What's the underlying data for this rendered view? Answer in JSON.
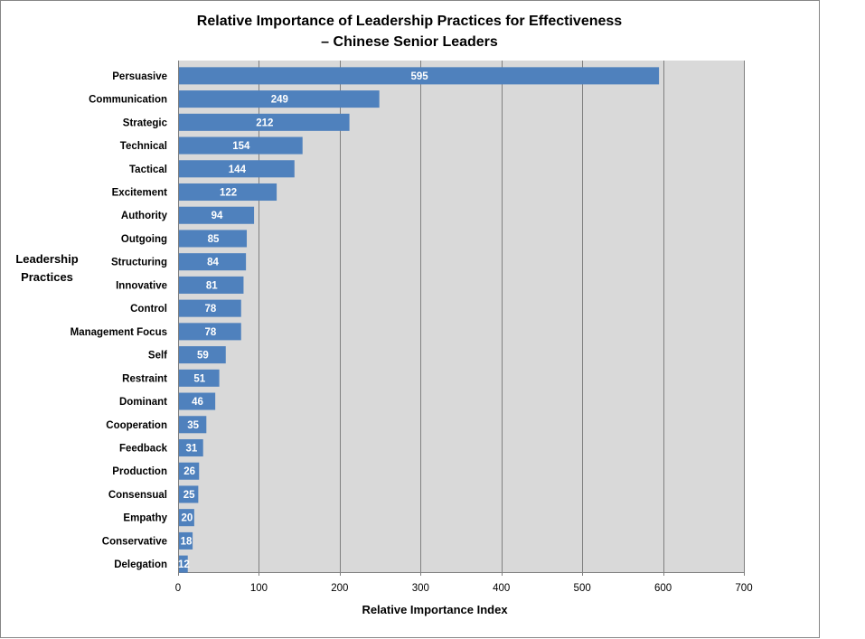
{
  "chart_data": {
    "type": "bar",
    "orientation": "horizontal",
    "title": [
      "Relative Importance of Leadership Practices for Effectiveness",
      "– Chinese Senior Leaders"
    ],
    "xlabel": "Relative Importance Index",
    "ylabel": [
      "Leadership",
      "Practices"
    ],
    "categories": [
      "Persuasive",
      "Communication",
      "Strategic",
      "Technical",
      "Tactical",
      "Excitement",
      "Authority",
      "Outgoing",
      "Structuring",
      "Innovative",
      "Control",
      "Management Focus",
      "Self",
      "Restraint",
      "Dominant",
      "Cooperation",
      "Feedback",
      "Production",
      "Consensual",
      "Empathy",
      "Conservative",
      "Delegation"
    ],
    "values": [
      595,
      249,
      212,
      154,
      144,
      122,
      94,
      85,
      84,
      81,
      78,
      78,
      59,
      51,
      46,
      35,
      31,
      26,
      25,
      20,
      18,
      12
    ],
    "xlim": [
      0,
      700
    ],
    "xticks": [
      0,
      100,
      200,
      300,
      400,
      500,
      600,
      700
    ],
    "grid": "vertical",
    "legend": "none",
    "colors": {
      "bar": "#4f81bd",
      "plot_background": "#d9d9d9",
      "gridline": "#808080",
      "frame": "#868686",
      "data_label": "#ffffff"
    }
  }
}
